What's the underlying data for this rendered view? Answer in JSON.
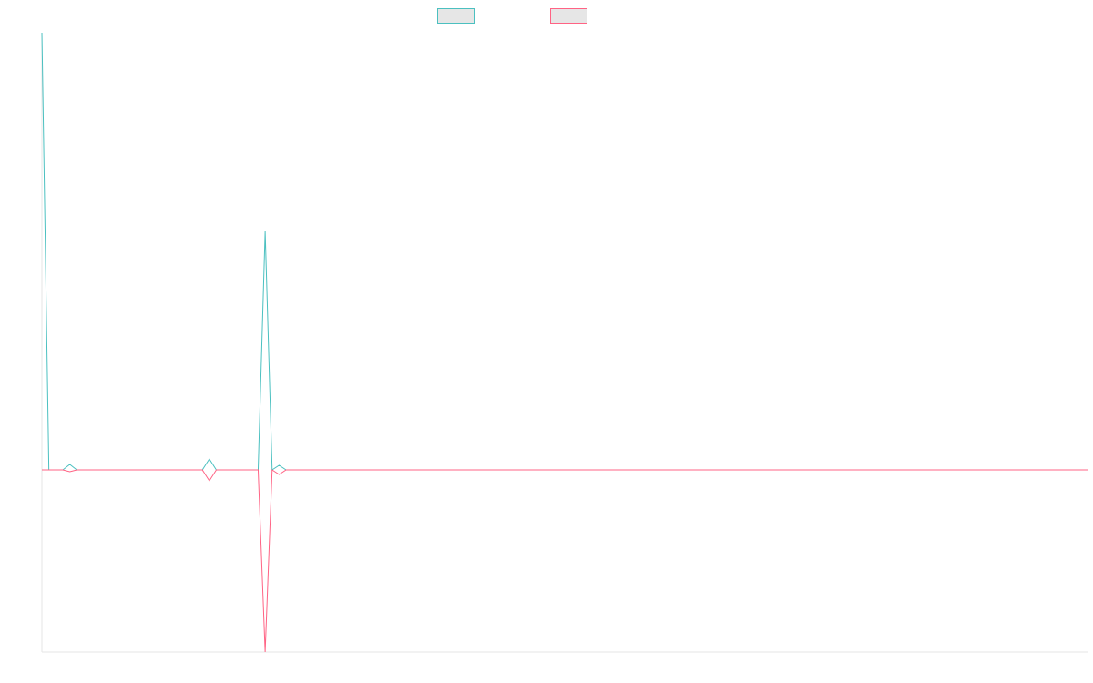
{
  "chart_data": {
    "type": "line",
    "title": "",
    "xlabel": "",
    "ylabel": "",
    "x": [
      0,
      1,
      2,
      3,
      4,
      5,
      6,
      7,
      8,
      9,
      10,
      11,
      12,
      13,
      14,
      15,
      16,
      17,
      18,
      19,
      20,
      21,
      22,
      23,
      24,
      25,
      26,
      27,
      28,
      29,
      30,
      31,
      32,
      33,
      34,
      35,
      36,
      37,
      38,
      39,
      40,
      41,
      42,
      43,
      44,
      45,
      46,
      47,
      48,
      49,
      50,
      51,
      52,
      53,
      54,
      55,
      56,
      57,
      58,
      59,
      60,
      61,
      62,
      63,
      64,
      65,
      66,
      67,
      68,
      69,
      70,
      71,
      72,
      73,
      74,
      75,
      76,
      77,
      78,
      79,
      80,
      81,
      82,
      83,
      84,
      85,
      86,
      87,
      88,
      89,
      90,
      91,
      92,
      93,
      94,
      95,
      96,
      97,
      98,
      99,
      100,
      101,
      102,
      103,
      104,
      105,
      106,
      107,
      108,
      109,
      110,
      111,
      112,
      113,
      114,
      115,
      116,
      117,
      118,
      119,
      120,
      121,
      122,
      123,
      124,
      125,
      126,
      127,
      128,
      129,
      130,
      131,
      132,
      133,
      134,
      135,
      136,
      137,
      138,
      139,
      140,
      141,
      142,
      143,
      144,
      145,
      146,
      147,
      148,
      149,
      150
    ],
    "xlim": [
      0,
      150
    ],
    "ylim": [
      -200,
      480
    ],
    "legend_position": "top-center",
    "grid": false,
    "series": [
      {
        "color": "#4bc0c0",
        "values": [
          480,
          0,
          0,
          0,
          6,
          0,
          0,
          0,
          0,
          0,
          0,
          0,
          0,
          0,
          0,
          0,
          0,
          0,
          0,
          0,
          0,
          0,
          0,
          0,
          12,
          0,
          0,
          0,
          0,
          0,
          0,
          0,
          262,
          0,
          5,
          0,
          0,
          0,
          0,
          0,
          0,
          0,
          0,
          0,
          0,
          0,
          0,
          0,
          0,
          0,
          0,
          0,
          0,
          0,
          0,
          0,
          0,
          0,
          0,
          0,
          0,
          0,
          0,
          0,
          0,
          0,
          0,
          0,
          0,
          0,
          0,
          0,
          0,
          0,
          0,
          0,
          0,
          0,
          0,
          0,
          0,
          0,
          0,
          0,
          0,
          0,
          0,
          0,
          0,
          0,
          0,
          0,
          0,
          0,
          0,
          0,
          0,
          0,
          0,
          0,
          0,
          0,
          0,
          0,
          0,
          0,
          0,
          0,
          0,
          0,
          0,
          0,
          0,
          0,
          0,
          0,
          0,
          0,
          0,
          0,
          0,
          0,
          0,
          0,
          0,
          0,
          0,
          0,
          0,
          0,
          0,
          0,
          0,
          0,
          0,
          0,
          0,
          0,
          0,
          0,
          0,
          0,
          0,
          0,
          0,
          0,
          0,
          0,
          0,
          0,
          0
        ]
      },
      {
        "color": "#ff6384",
        "values": [
          0,
          0,
          0,
          0,
          -2,
          0,
          0,
          0,
          0,
          0,
          0,
          0,
          0,
          0,
          0,
          0,
          0,
          0,
          0,
          0,
          0,
          0,
          0,
          0,
          -12,
          0,
          0,
          0,
          0,
          0,
          0,
          0,
          -200,
          0,
          -5,
          0,
          0,
          0,
          0,
          0,
          0,
          0,
          0,
          0,
          0,
          0,
          0,
          0,
          0,
          0,
          0,
          0,
          0,
          0,
          0,
          0,
          0,
          0,
          0,
          0,
          0,
          0,
          0,
          0,
          0,
          0,
          0,
          0,
          0,
          0,
          0,
          0,
          0,
          0,
          0,
          0,
          0,
          0,
          0,
          0,
          0,
          0,
          0,
          0,
          0,
          0,
          0,
          0,
          0,
          0,
          0,
          0,
          0,
          0,
          0,
          0,
          0,
          0,
          0,
          0,
          0,
          0,
          0,
          0,
          0,
          0,
          0,
          0,
          0,
          0,
          0,
          0,
          0,
          0,
          0,
          0,
          0,
          0,
          0,
          0,
          0,
          0,
          0,
          0,
          0,
          0,
          0,
          0,
          0,
          0,
          0,
          0,
          0,
          0,
          0,
          0,
          0,
          0,
          0,
          0,
          0,
          0,
          0,
          0,
          0,
          0,
          0,
          0,
          0,
          0,
          0
        ]
      }
    ]
  }
}
